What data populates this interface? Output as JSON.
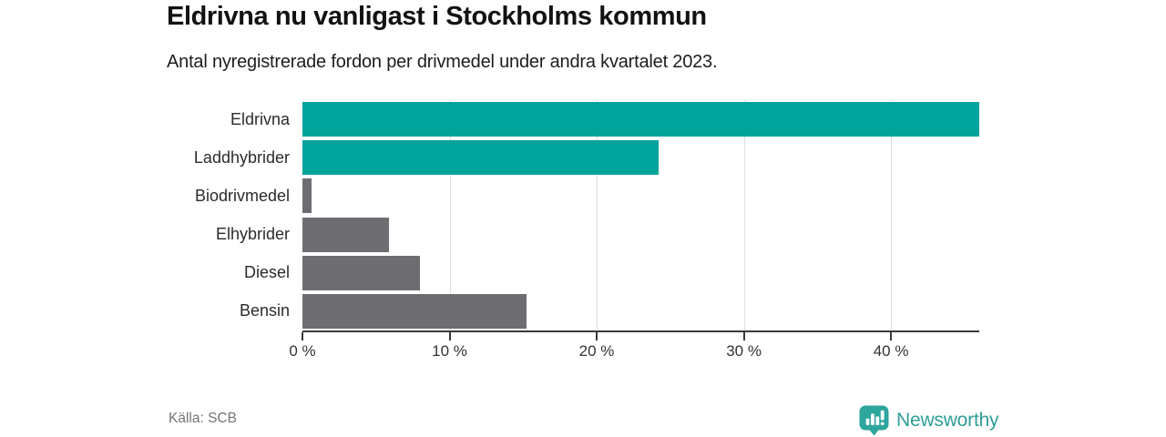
{
  "header": {
    "title": "Eldrivna nu vanligast i Stockholms kommun",
    "subtitle": "Antal nyregistrerade fordon per drivmedel under andra kvartalet 2023."
  },
  "chart_data": {
    "type": "bar",
    "orientation": "horizontal",
    "title": "Eldrivna nu vanligast i Stockholms kommun",
    "subtitle": "Antal nyregistrerade fordon per drivmedel under andra kvartalet 2023.",
    "categories": [
      "Eldrivna",
      "Laddhybrider",
      "Biodrivmedel",
      "Elhybrider",
      "Diesel",
      "Bensin"
    ],
    "values": [
      46.0,
      24.2,
      0.6,
      5.9,
      8.0,
      15.2
    ],
    "unit": "%",
    "xlim": [
      0,
      46
    ],
    "x_ticks": [
      {
        "value": 0,
        "label": "0 %"
      },
      {
        "value": 10,
        "label": "10 %"
      },
      {
        "value": 20,
        "label": "20 %"
      },
      {
        "value": 30,
        "label": "30 %"
      },
      {
        "value": 40,
        "label": "40 %"
      }
    ],
    "bar_colors": [
      "#00a49b",
      "#00a49b",
      "#6e6e72",
      "#6e6e72",
      "#6e6e72",
      "#6e6e72"
    ],
    "grid": "vertical-lines-at-ticks",
    "legend": false
  },
  "footer": {
    "source": "Källa: SCB",
    "brand": "Newsworthy"
  },
  "colors": {
    "accent_teal": "#00a49b",
    "bar_gray": "#6e6e72",
    "axis": "#3a3a3a",
    "gridline": "#dedede",
    "brand_teal": "#2f9e97",
    "text_muted": "#757575"
  }
}
